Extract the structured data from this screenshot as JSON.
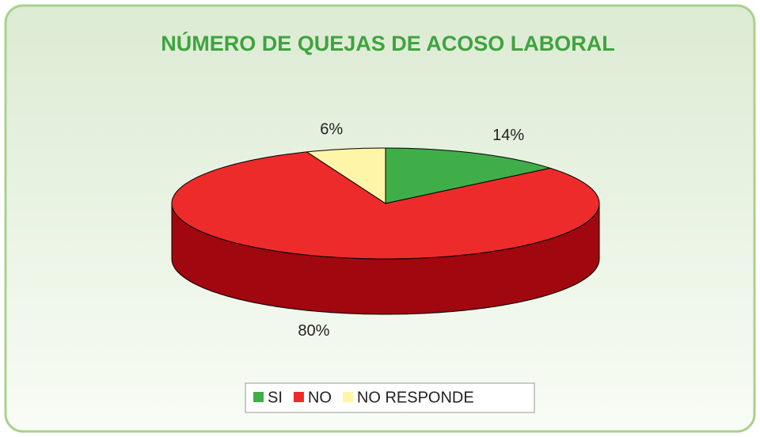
{
  "chart_data": {
    "type": "pie3d",
    "title": "NÚMERO DE QUEJAS DE ACOSO LABORAL",
    "categories": [
      "SI",
      "NO",
      "NO RESPONDE"
    ],
    "values": [
      14,
      80,
      6
    ],
    "value_labels": [
      "14%",
      "80%",
      "6%"
    ],
    "colors": [
      "#3fae49",
      "#ee2b2b",
      "#fff5a8"
    ],
    "side_colors": [
      "#2a7d32",
      "#a0070f",
      "#c9c07a"
    ],
    "legend": "bottom"
  }
}
